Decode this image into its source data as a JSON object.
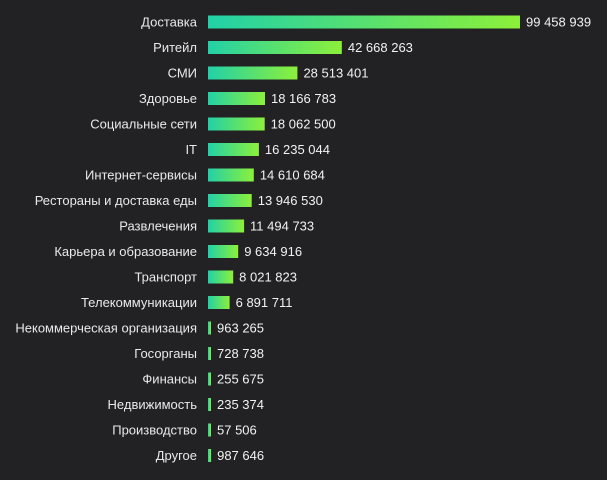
{
  "chart_data": {
    "type": "bar",
    "orientation": "horizontal",
    "categories": [
      "Доставка",
      "Ритейл",
      "СМИ",
      "Здоровье",
      "Социальные сети",
      "IT",
      "Интернет-сервисы",
      "Рестораны и доставка еды",
      "Развлечения",
      "Карьера и образование",
      "Транспорт",
      "Телекоммуникации",
      "Некоммерческая организация",
      "Госорганы",
      "Финансы",
      "Недвижимость",
      "Производство",
      "Другое"
    ],
    "values": [
      99458939,
      42668263,
      28513401,
      18166783,
      18062500,
      16235044,
      14610684,
      13946530,
      11494733,
      9634916,
      8021823,
      6891711,
      963265,
      728738,
      255675,
      235374,
      57506,
      987646
    ],
    "value_labels": [
      "99 458 939",
      "42 668 263",
      "28 513 401",
      "18 166 783",
      "18 062 500",
      "16 235 044",
      "14 610 684",
      "13 946 530",
      "11 494 733",
      "9 634 916",
      "8 021 823",
      "6 891 711",
      "963 265",
      "728 738",
      "255 675",
      "235 374",
      "57 506",
      "987 646"
    ],
    "title": "",
    "xlabel": "",
    "ylabel": "",
    "grid": false,
    "legend": "none",
    "colors": {
      "background": "#222224",
      "bar_gradient_start": "#22d1a7",
      "bar_gradient_end": "#8cf03a",
      "text": "#ebebeb"
    }
  }
}
